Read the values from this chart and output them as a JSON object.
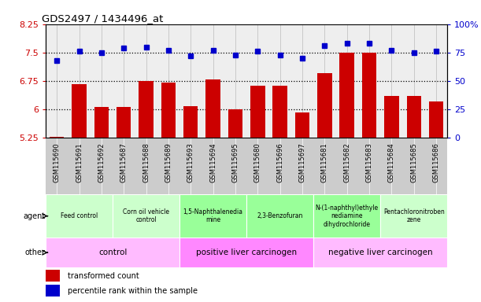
{
  "title": "GDS2497 / 1434496_at",
  "samples": [
    "GSM115690",
    "GSM115691",
    "GSM115692",
    "GSM115687",
    "GSM115688",
    "GSM115689",
    "GSM115693",
    "GSM115694",
    "GSM115695",
    "GSM115680",
    "GSM115696",
    "GSM115697",
    "GSM115681",
    "GSM115682",
    "GSM115683",
    "GSM115684",
    "GSM115685",
    "GSM115686"
  ],
  "bar_values": [
    5.28,
    6.67,
    6.07,
    6.07,
    6.75,
    6.7,
    6.08,
    6.78,
    6.01,
    6.62,
    6.63,
    5.92,
    6.95,
    7.5,
    7.5,
    6.35,
    6.35,
    6.2
  ],
  "dot_values": [
    68,
    76,
    75,
    79,
    80,
    77,
    72,
    77,
    73,
    76,
    73,
    70,
    81,
    83,
    83,
    77,
    75,
    76
  ],
  "bar_color": "#cc0000",
  "dot_color": "#0000cc",
  "ylim_left": [
    5.25,
    8.25
  ],
  "ylim_right": [
    0,
    100
  ],
  "yticks_left": [
    5.25,
    6.0,
    6.75,
    7.5,
    8.25
  ],
  "yticks_right": [
    0,
    25,
    50,
    75,
    100
  ],
  "ytick_labels_left": [
    "5.25",
    "6",
    "6.75",
    "7.5",
    "8.25"
  ],
  "ytick_labels_right": [
    "0",
    "25",
    "50",
    "75",
    "100%"
  ],
  "hlines": [
    6.0,
    6.75,
    7.5
  ],
  "agent_groups": [
    {
      "label": "Feed control",
      "start": 0,
      "end": 3,
      "color": "#ccffcc"
    },
    {
      "label": "Corn oil vehicle\ncontrol",
      "start": 3,
      "end": 6,
      "color": "#ccffcc"
    },
    {
      "label": "1,5-Naphthalenedia\nmine",
      "start": 6,
      "end": 9,
      "color": "#99ff99"
    },
    {
      "label": "2,3-Benzofuran",
      "start": 9,
      "end": 12,
      "color": "#99ff99"
    },
    {
      "label": "N-(1-naphthyl)ethyle\nnediamine\ndihydrochloride",
      "start": 12,
      "end": 15,
      "color": "#99ff99"
    },
    {
      "label": "Pentachloronitroben\nzene",
      "start": 15,
      "end": 18,
      "color": "#ccffcc"
    }
  ],
  "other_groups": [
    {
      "label": "control",
      "start": 0,
      "end": 6,
      "color": "#ffbbff"
    },
    {
      "label": "positive liver carcinogen",
      "start": 6,
      "end": 12,
      "color": "#ff88ff"
    },
    {
      "label": "negative liver carcinogen",
      "start": 12,
      "end": 18,
      "color": "#ffbbff"
    }
  ],
  "legend_items": [
    {
      "label": "transformed count",
      "color": "#cc0000"
    },
    {
      "label": "percentile rank within the sample",
      "color": "#0000cc"
    }
  ],
  "plot_bg_color": "#eeeeee",
  "sample_label_bg": "#cccccc"
}
